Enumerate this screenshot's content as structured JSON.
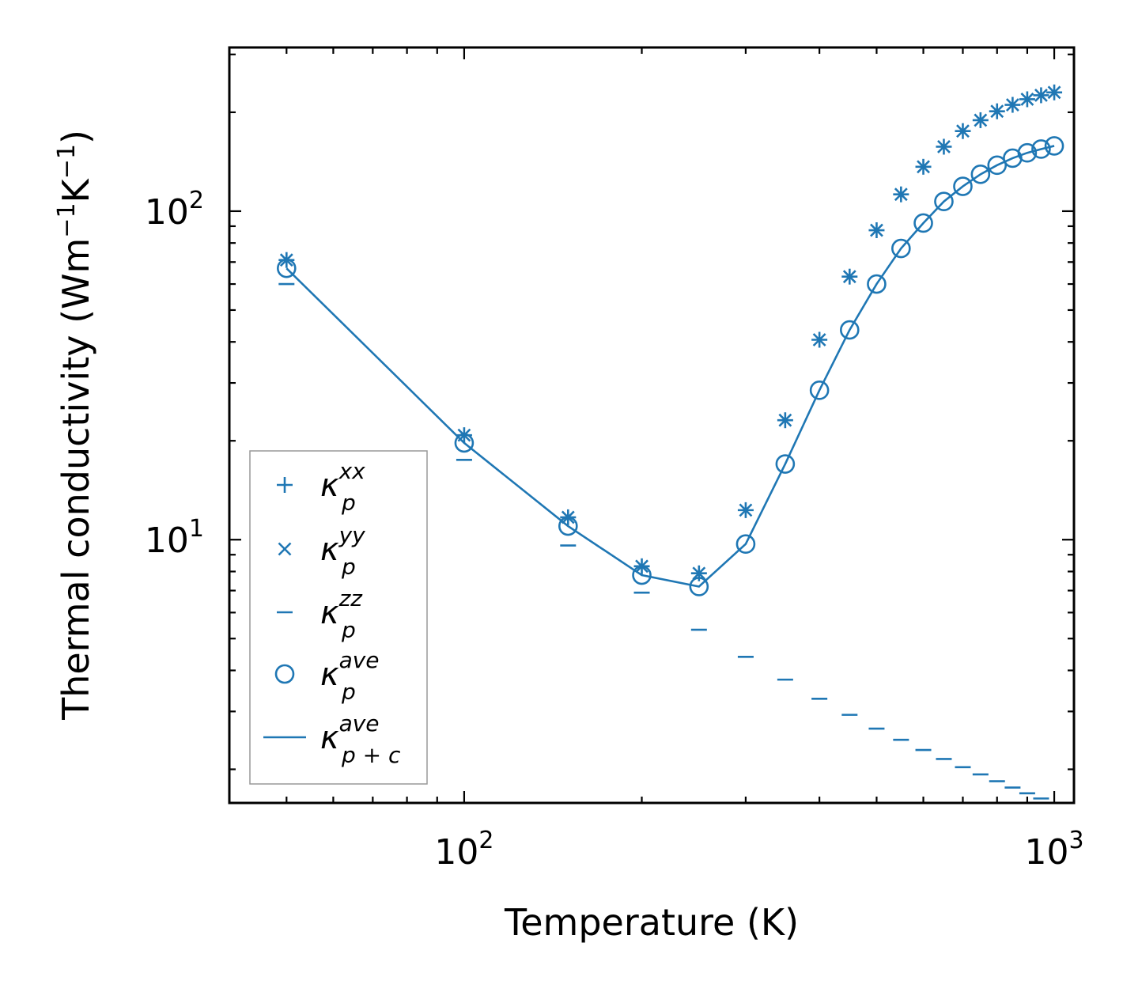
{
  "chart_data": {
    "type": "scatter",
    "xscale": "log",
    "yscale": "log",
    "xlabel": "Temperature (K)",
    "ylabel": {
      "text": "Thermal conductivity (Wm",
      "exp1": "−1",
      "mid": "K",
      "exp2": "−1",
      "end": ")"
    },
    "xlim": [
      40,
      1080
    ],
    "ylim": [
      1.58,
      315
    ],
    "x_ticks": [
      {
        "value": 100,
        "base": "10",
        "exp": "2"
      },
      {
        "value": 1000,
        "base": "10",
        "exp": "3"
      }
    ],
    "y_ticks": [
      {
        "value": 10,
        "base": "10",
        "exp": "1"
      },
      {
        "value": 100,
        "base": "10",
        "exp": "2"
      }
    ],
    "color": "#1f77b4",
    "legend_position": "lower-left",
    "series": [
      {
        "name": "kappa_p_xx",
        "label": {
          "sym": "κ",
          "sup": "xx",
          "sub": "p"
        },
        "marker": "plus",
        "x": [
          50,
          100,
          150,
          200,
          250,
          300,
          350,
          400,
          450,
          500,
          550,
          600,
          650,
          700,
          750,
          800,
          850,
          900,
          950,
          1000
        ],
        "y": [
          71,
          20.8,
          11.7,
          8.3,
          7.9,
          12.3,
          23.1,
          40.6,
          63.2,
          87.5,
          112.5,
          136.5,
          157.1,
          175.3,
          189.2,
          201.4,
          210.7,
          219.1,
          225.3,
          229.9
        ]
      },
      {
        "name": "kappa_p_yy",
        "label": {
          "sym": "κ",
          "sup": "yy",
          "sub": "p"
        },
        "marker": "cross",
        "x": [
          50,
          100,
          150,
          200,
          250,
          300,
          350,
          400,
          450,
          500,
          550,
          600,
          650,
          700,
          750,
          800,
          850,
          900,
          950,
          1000
        ],
        "y": [
          71,
          20.8,
          11.7,
          8.3,
          7.9,
          12.3,
          23.1,
          40.6,
          63.2,
          87.5,
          112.5,
          136.5,
          157.1,
          175.3,
          189.2,
          201.4,
          210.7,
          219.1,
          225.3,
          229.9
        ]
      },
      {
        "name": "kappa_p_zz",
        "label": {
          "sym": "κ",
          "sup": "zz",
          "sub": "p"
        },
        "marker": "hline",
        "x": [
          50,
          100,
          150,
          200,
          250,
          300,
          350,
          400,
          450,
          500,
          550,
          600,
          650,
          700,
          750,
          800,
          850,
          900,
          950,
          1000
        ],
        "y": [
          60,
          17.5,
          9.6,
          6.9,
          5.32,
          4.4,
          3.75,
          3.28,
          2.93,
          2.66,
          2.46,
          2.29,
          2.15,
          2.03,
          1.93,
          1.84,
          1.76,
          1.69,
          1.63,
          1.58
        ]
      },
      {
        "name": "kappa_p_ave",
        "label": {
          "sym": "κ",
          "sup": "ave",
          "sub": "p"
        },
        "marker": "circle",
        "x": [
          50,
          100,
          150,
          200,
          250,
          300,
          350,
          400,
          450,
          500,
          550,
          600,
          650,
          700,
          750,
          800,
          850,
          900,
          950,
          1000
        ],
        "y": [
          67,
          19.7,
          11.0,
          7.8,
          7.2,
          9.7,
          17.0,
          28.5,
          43.5,
          60.0,
          77.0,
          92.0,
          107.0,
          119.0,
          129.5,
          138.0,
          145.0,
          150.5,
          154.5,
          158.0
        ]
      },
      {
        "name": "kappa_p_plus_c_ave",
        "label": {
          "sym": "κ",
          "sup": "ave",
          "sub": "p + c"
        },
        "marker": "line",
        "x": [
          50,
          100,
          150,
          200,
          250,
          300,
          350,
          400,
          450,
          500,
          550,
          600,
          650,
          700,
          750,
          800,
          850,
          900,
          950,
          1000
        ],
        "y": [
          67,
          19.7,
          11.0,
          7.8,
          7.2,
          9.7,
          17.0,
          28.5,
          43.5,
          60.0,
          77.0,
          92.0,
          107.0,
          119.0,
          129.5,
          138.0,
          145.0,
          150.5,
          154.5,
          158.0
        ]
      }
    ]
  }
}
